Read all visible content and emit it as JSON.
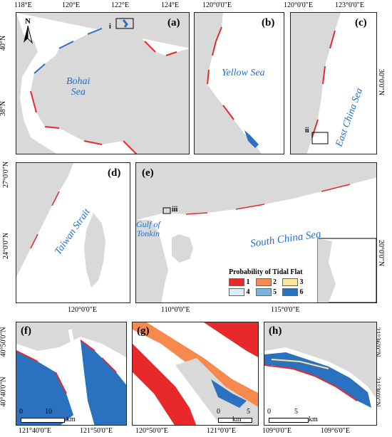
{
  "panels": {
    "a": {
      "label": "(a)",
      "sea": "Bohai\nSea",
      "inset_mark": "i",
      "north": "N",
      "top_ticks": [
        "118°E",
        "120°E",
        "122°E",
        "124°E"
      ],
      "left_ticks": [
        "40°N",
        "38°N"
      ]
    },
    "b": {
      "label": "(b)",
      "sea": "Yellow Sea",
      "top_ticks": [
        "120°0'0\"E"
      ]
    },
    "c": {
      "label": "(c)",
      "sea": "East China Sea",
      "inset_mark": "ii",
      "top_ticks": [
        "120°0'0\"E",
        "123°0'0\"E"
      ],
      "right_ticks": [
        "30°0'0\"N"
      ]
    },
    "d": {
      "label": "(d)",
      "sea": "Taiwan Strait",
      "left_ticks": [
        "27°0'0\"N",
        "24°0'0\"N"
      ],
      "bottom_ticks": [
        "120°0'0\"E"
      ]
    },
    "e": {
      "label": "(e)",
      "sea": "South China Sea",
      "gulf": "Gulf of\nTonkin",
      "inset_mark": "iii",
      "bottom_ticks": [
        "110°0'0\"E",
        "115°0'0\"E"
      ],
      "right_ticks": [
        "20°0'0\"N"
      ],
      "legend_title": "Probability of Tidal Flat",
      "legend_items": [
        {
          "label": "1",
          "color": "#e8292b"
        },
        {
          "label": "2",
          "color": "#f5894e"
        },
        {
          "label": "3",
          "color": "#fde39c"
        },
        {
          "label": "4",
          "color": "#dcedf3"
        },
        {
          "label": "5",
          "color": "#7db4d8"
        },
        {
          "label": "6",
          "color": "#2a72c0"
        }
      ]
    },
    "f": {
      "label": "(f)",
      "left_ticks": [
        "40°50'0\"N",
        "40°40'0\"N"
      ],
      "bottom_ticks": [
        "121°40'0\"E",
        "121°50'0\"E"
      ],
      "scale": {
        "zero": "0",
        "max": "10",
        "unit": "km"
      }
    },
    "g": {
      "label": "(g)",
      "bottom_ticks": [
        "120°50'0\"E",
        "121°0'0\"E"
      ],
      "scale": {
        "zero": "0",
        "max": "5",
        "unit": "km"
      }
    },
    "h": {
      "label": "(h)",
      "right_ticks": [
        "21°36'0\"N",
        "21°30'0\"N"
      ],
      "bottom_ticks": [
        "109°0'0\"E",
        "109°6'0\"E"
      ],
      "scale": {
        "zero": "0",
        "max": "5",
        "unit": "km"
      }
    }
  },
  "colors": {
    "land": "#d9d9d9",
    "sea_text": "#1f6fd1",
    "p1": "#e8292b",
    "p2": "#f5894e",
    "p3": "#fde39c",
    "p4": "#dcedf3",
    "p5": "#7db4d8",
    "p6": "#2a72c0"
  }
}
